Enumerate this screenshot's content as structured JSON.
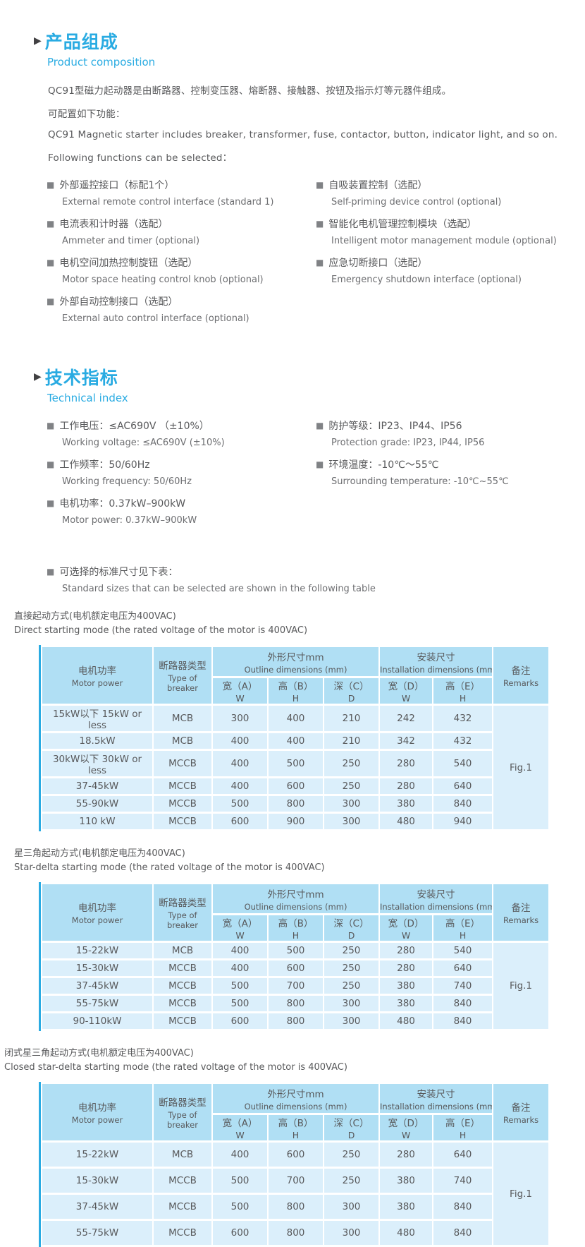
{
  "icons": {
    "arrow": "▶",
    "bullet": "■"
  },
  "colors": {
    "accent_blue": "#29abe2",
    "text_gray": "#58595b",
    "bullet_gray": "#808285",
    "table_header_bg": "#b0dff4",
    "table_row_bg": "#dbeffb",
    "table_left_border": "#2aabe2"
  },
  "section_product": {
    "title_zh": "产品组成",
    "title_en": "Product composition",
    "intro_zh": "QC91型磁力起动器是由断路器、控制变压器、熔断器、接触器、按钮及指示灯等元器件组成。",
    "intro_zh2": "可配置如下功能：",
    "intro_en": "QC91 Magnetic starter includes breaker, transformer, fuse, contactor, button, indicator light, and so on.",
    "intro_en2": "Following functions can be selected：",
    "features_left": [
      {
        "zh": "外部遥控接口（标配1个）",
        "en": "External remote control interface (standard 1)"
      },
      {
        "zh": "电流表和计时器（选配）",
        "en": "Ammeter and timer (optional)"
      },
      {
        "zh": "电机空间加热控制旋钮（选配）",
        "en": "Motor space heating control knob (optional)"
      },
      {
        "zh": "外部自动控制接口（选配）",
        "en": "External auto control interface (optional)"
      }
    ],
    "features_right": [
      {
        "zh": "自吸装置控制（选配）",
        "en": "Self-priming device control (optional)"
      },
      {
        "zh": "智能化电机管理控制模块（选配）",
        "en": "Intelligent motor management module (optional)"
      },
      {
        "zh": "应急切断接口（选配）",
        "en": "Emergency shutdown interface (optional)"
      }
    ]
  },
  "section_technical": {
    "title_zh": "技术指标",
    "title_en": "Technical index",
    "specs_left": [
      {
        "zh": "工作电压：≤AC690V （±10%）",
        "en": "Working voltage: ≤AC690V (±10%)"
      },
      {
        "zh": "工作频率：50/60Hz",
        "en": "Working frequency: 50/60Hz"
      },
      {
        "zh": "电机功率：0.37kW–900kW",
        "en": "Motor power: 0.37kW–900kW"
      }
    ],
    "specs_right": [
      {
        "zh": "防护等级：IP23、IP44、IP56",
        "en": "Protection grade: IP23, IP44, IP56"
      },
      {
        "zh": "环境温度：-10℃～55℃",
        "en": "Surrounding temperature: -10℃~55℃"
      }
    ]
  },
  "sizes_note": {
    "zh": "可选择的标准尺寸见下表：",
    "en": "Standard sizes that can be selected are shown in the following table"
  },
  "table_header": {
    "motor_power_zh": "电机功率",
    "motor_power_en": "Motor power",
    "breaker_zh": "断路器类型",
    "breaker_en": "Type of breaker",
    "outline_zh": "外形尺寸mm",
    "outline_en": "Outline dimensions (mm)",
    "install_zh": "安装尺寸",
    "install_en": "Installation dimensions (mm)",
    "remarks_zh": "备注",
    "remarks_en": "Remarks",
    "col_a_zh": "宽（A）",
    "col_a_en": "W",
    "col_b_zh": "高（B）",
    "col_b_en": "H",
    "col_c_zh": "深（C）",
    "col_c_en": "D",
    "col_d_zh": "宽（D）",
    "col_d_en": "W",
    "col_e_zh": "高（E）",
    "col_e_en": "H"
  },
  "tables": [
    {
      "caption_zh": "直接起动方式(电机额定电压为400VAC)",
      "caption_en": "Direct starting mode (the rated voltage of the motor is 400VAC)",
      "remark": "Fig.1",
      "rows": [
        [
          "15kW以下 15kW or less",
          "MCB",
          "300",
          "400",
          "210",
          "242",
          "432"
        ],
        [
          "18.5kW",
          "MCB",
          "400",
          "400",
          "210",
          "342",
          "432"
        ],
        [
          "30kW以下 30kW or less",
          "MCCB",
          "400",
          "500",
          "250",
          "280",
          "540"
        ],
        [
          "37-45kW",
          "MCCB",
          "400",
          "600",
          "250",
          "280",
          "640"
        ],
        [
          "55-90kW",
          "MCCB",
          "500",
          "800",
          "300",
          "380",
          "840"
        ],
        [
          "110 kW",
          "MCCB",
          "600",
          "900",
          "300",
          "480",
          "940"
        ]
      ]
    },
    {
      "caption_zh": "星三角起动方式(电机额定电压为400VAC)",
      "caption_en": "Star-delta starting mode (the rated voltage of the motor is 400VAC)",
      "remark": "Fig.1",
      "rows": [
        [
          "15-22kW",
          "MCB",
          "400",
          "500",
          "250",
          "280",
          "540"
        ],
        [
          "15-30kW",
          "MCCB",
          "400",
          "600",
          "250",
          "280",
          "640"
        ],
        [
          "37-45kW",
          "MCCB",
          "500",
          "700",
          "250",
          "380",
          "740"
        ],
        [
          "55-75kW",
          "MCCB",
          "500",
          "800",
          "300",
          "380",
          "840"
        ],
        [
          "90-110kW",
          "MCCB",
          "600",
          "800",
          "300",
          "480",
          "840"
        ]
      ]
    },
    {
      "caption_zh": "闭式星三角起动方式(电机额定电压为400VAC)",
      "caption_en": "Closed star-delta starting mode (the rated voltage of the motor is 400VAC)",
      "remark": "Fig.1",
      "rows": [
        [
          "15-22kW",
          "MCB",
          "400",
          "600",
          "250",
          "280",
          "640"
        ],
        [
          "15-30kW",
          "MCCB",
          "500",
          "700",
          "250",
          "380",
          "740"
        ],
        [
          "37-45kW",
          "MCCB",
          "500",
          "800",
          "300",
          "380",
          "840"
        ],
        [
          "55-75kW",
          "MCCB",
          "600",
          "800",
          "300",
          "480",
          "840"
        ]
      ]
    }
  ]
}
